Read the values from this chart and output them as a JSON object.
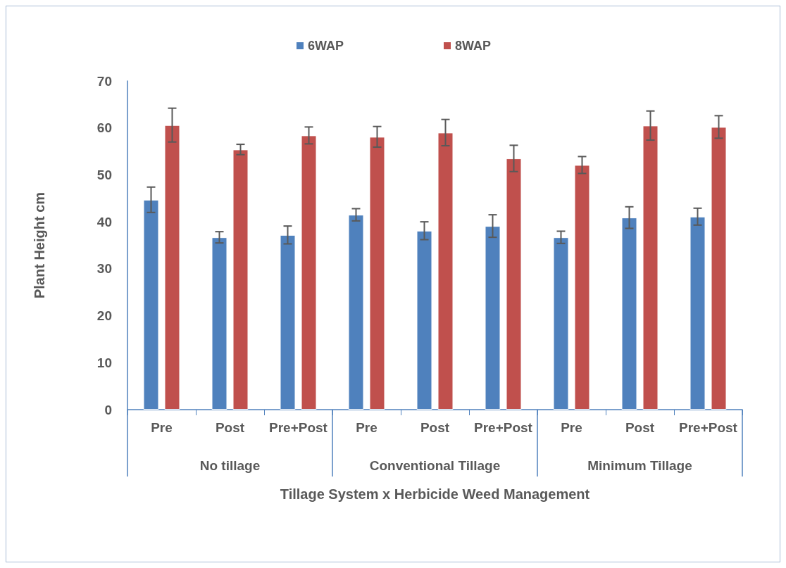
{
  "chart_data": {
    "type": "bar",
    "xlabel": "Tillage System x Herbicide Weed Management",
    "ylabel": "Plant Height cm",
    "categories": [
      "Pre",
      "Post",
      "Pre+Post",
      "Pre",
      "Post",
      "Pre+Post",
      "Pre",
      "Post",
      "Pre+Post"
    ],
    "annotations": [
      "No tillage",
      "Conventional Tillage",
      "Minimum Tillage"
    ],
    "series": [
      {
        "name": "6WAP",
        "color": "#4f81bd",
        "values": [
          44.7,
          36.7,
          37.2,
          41.5,
          38.1,
          39.1,
          36.7,
          40.9,
          41.1
        ],
        "errors": [
          2.7,
          1.2,
          1.9,
          1.3,
          1.9,
          2.4,
          1.3,
          2.3,
          1.8
        ]
      },
      {
        "name": "8WAP",
        "color": "#c0504d",
        "values": [
          60.6,
          55.4,
          58.4,
          58.1,
          59.0,
          53.5,
          52.1,
          60.5,
          60.2
        ],
        "errors": [
          3.6,
          1.1,
          1.8,
          2.2,
          2.8,
          2.8,
          1.8,
          3.1,
          2.4
        ]
      }
    ],
    "ylim": [
      0,
      70
    ],
    "yticks": [
      0,
      10,
      20,
      30,
      40,
      50,
      60,
      70
    ],
    "grid": false,
    "legend": "top"
  }
}
